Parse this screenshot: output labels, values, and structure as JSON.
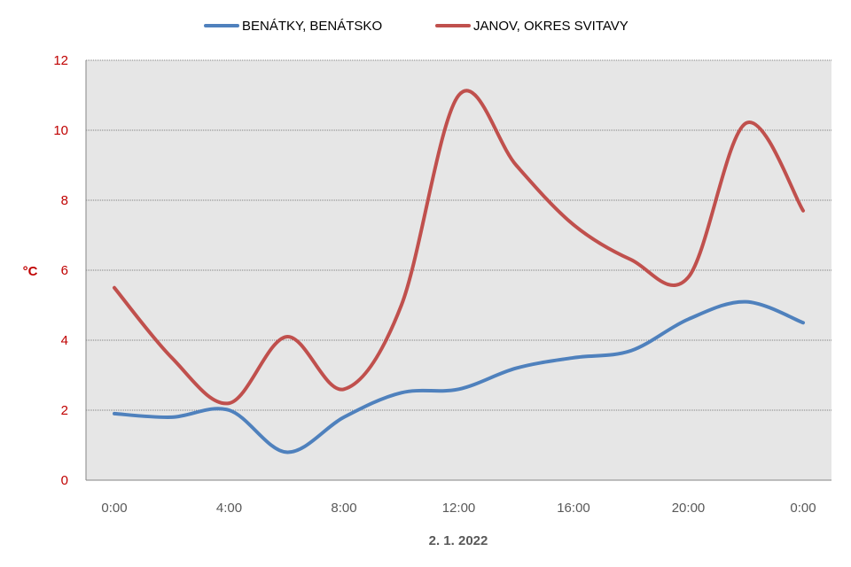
{
  "chart_data": {
    "type": "line",
    "xlabel": "2. 1. 2022",
    "ylabel": "°C",
    "ylim": [
      0,
      12
    ],
    "yticks": [
      "0",
      "2",
      "4",
      "6",
      "8",
      "10",
      "12"
    ],
    "x_categories": [
      "0:00",
      "2:00",
      "4:00",
      "6:00",
      "8:00",
      "10:00",
      "12:00",
      "14:00",
      "16:00",
      "18:00",
      "20:00",
      "22:00",
      "0:00"
    ],
    "xtick_labels": [
      "0:00",
      "4:00",
      "8:00",
      "12:00",
      "16:00",
      "20:00",
      "0:00"
    ],
    "grid": true,
    "legend_position": "top",
    "series": [
      {
        "name": "BENÁTKY, BENÁTSKO",
        "color": "#4f81bd",
        "values": [
          1.9,
          1.8,
          2.0,
          0.8,
          1.8,
          2.5,
          2.6,
          3.2,
          3.5,
          3.7,
          4.6,
          5.1,
          4.5
        ]
      },
      {
        "name": "JANOV, OKRES SVITAVY",
        "color": "#c0504d",
        "values": [
          5.5,
          3.5,
          2.2,
          4.1,
          2.6,
          5.0,
          11.0,
          9.0,
          7.3,
          6.3,
          5.8,
          10.2,
          7.7
        ]
      }
    ],
    "colors": {
      "plot_background": "#e6e6e6",
      "gridline": "#808080",
      "ytick": "#c00000",
      "xtick": "#595959"
    }
  }
}
